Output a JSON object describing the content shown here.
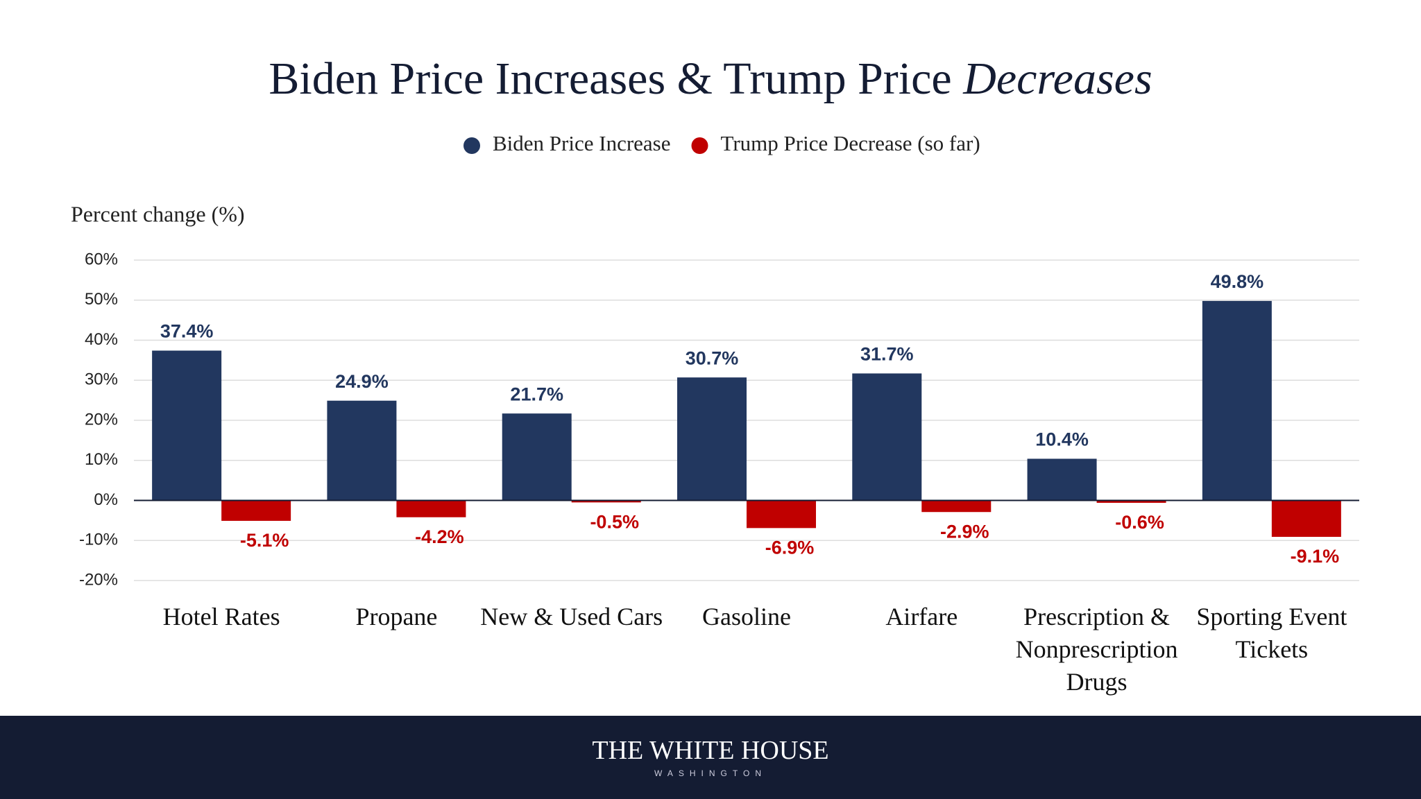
{
  "chart_data": {
    "type": "bar",
    "title": [
      "Biden Price Increases & Trump Price",
      "Decreases"
    ],
    "y_label": "Percent change (%)",
    "categories": [
      "Hotel Rates",
      "Propane",
      "New & Used Cars",
      "Gasoline",
      "Airfare",
      "Prescription &\nNonprescription Drugs",
      "Sporting Event\nTickets"
    ],
    "series": [
      {
        "name": "Biden Price Increase",
        "color": "#22375f",
        "values": [
          37.4,
          24.9,
          21.7,
          30.7,
          31.7,
          10.4,
          49.8
        ],
        "value_labels": [
          "37.4%",
          "24.9%",
          "21.7%",
          "30.7%",
          "31.7%",
          "10.4%",
          "49.8%"
        ]
      },
      {
        "name": "Trump Price Decrease (so far)",
        "color": "#c00000",
        "values": [
          -5.1,
          -4.2,
          -0.5,
          -6.9,
          -2.9,
          -0.6,
          -9.1
        ],
        "value_labels": [
          "-5.1%",
          "-4.2%",
          "-0.5%",
          "-6.9%",
          "-2.9%",
          "-0.6%",
          "-9.1%"
        ]
      }
    ],
    "ylim": [
      -20,
      60
    ],
    "yticks": [
      {
        "value": -20,
        "label": "-20%"
      },
      {
        "value": -10,
        "label": "-10%"
      },
      {
        "value": 0,
        "label": "0%"
      },
      {
        "value": 10,
        "label": "10%"
      },
      {
        "value": 20,
        "label": "20%"
      },
      {
        "value": 30,
        "label": "30%"
      },
      {
        "value": 40,
        "label": "40%"
      },
      {
        "value": 50,
        "label": "50%"
      },
      {
        "value": 60,
        "label": "60%"
      }
    ],
    "grid": true
  },
  "footer": {
    "title": "THE WHITE HOUSE",
    "subtitle": "WASHINGTON"
  }
}
